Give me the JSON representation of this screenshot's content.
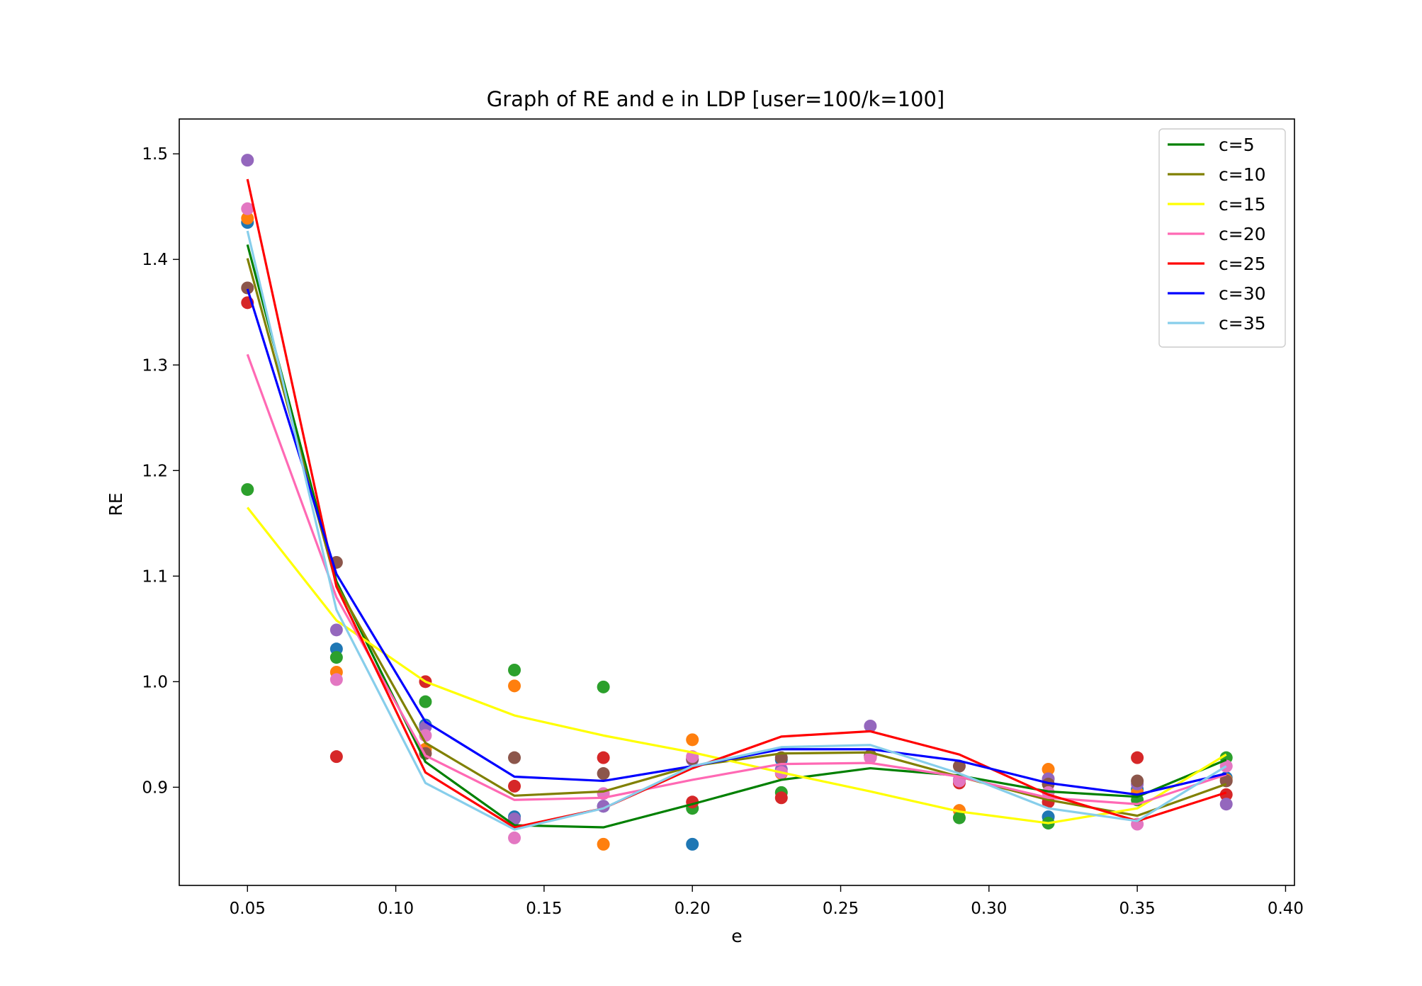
{
  "chart_data": {
    "type": "line",
    "title": "Graph of RE and e in LDP [user=100/k=100]",
    "xlabel": "e",
    "ylabel": "RE",
    "xlim": [
      0.027,
      0.403
    ],
    "ylim": [
      0.807,
      1.533
    ],
    "xticks": [
      0.05,
      0.1,
      0.15,
      0.2,
      0.25,
      0.3,
      0.35,
      0.4
    ],
    "xtick_labels": [
      "0.05",
      "0.10",
      "0.15",
      "0.20",
      "0.25",
      "0.30",
      "0.35",
      "0.40"
    ],
    "yticks": [
      0.9,
      1.0,
      1.1,
      1.2,
      1.3,
      1.4,
      1.5
    ],
    "ytick_labels": [
      "0.9",
      "1.0",
      "1.1",
      "1.2",
      "1.3",
      "1.4",
      "1.5"
    ],
    "grid": false,
    "legend_position": "top-right",
    "x": [
      0.05,
      0.08,
      0.11,
      0.14,
      0.17,
      0.2,
      0.23,
      0.26,
      0.29,
      0.32,
      0.35,
      0.38
    ],
    "series": [
      {
        "name": "c=5",
        "color": "#008000",
        "values": [
          1.414,
          1.095,
          0.924,
          0.864,
          0.862,
          0.884,
          0.907,
          0.918,
          0.911,
          0.896,
          0.891,
          0.926
        ]
      },
      {
        "name": "c=10",
        "color": "#808000",
        "values": [
          1.401,
          1.092,
          0.942,
          0.892,
          0.896,
          0.92,
          0.932,
          0.933,
          0.91,
          0.888,
          0.873,
          0.903
        ]
      },
      {
        "name": "c=15",
        "color": "#ffff00",
        "values": [
          1.165,
          1.058,
          1.0,
          0.968,
          0.949,
          0.933,
          0.914,
          0.896,
          0.877,
          0.866,
          0.88,
          0.931
        ]
      },
      {
        "name": "c=20",
        "color": "#ff69b4",
        "values": [
          1.31,
          1.08,
          0.93,
          0.888,
          0.89,
          0.907,
          0.922,
          0.923,
          0.91,
          0.89,
          0.884,
          0.912
        ]
      },
      {
        "name": "c=25",
        "color": "#ff0000",
        "values": [
          1.476,
          1.09,
          0.914,
          0.862,
          0.88,
          0.918,
          0.948,
          0.953,
          0.931,
          0.893,
          0.868,
          0.895
        ]
      },
      {
        "name": "c=30",
        "color": "#0000ff",
        "values": [
          1.372,
          1.102,
          0.962,
          0.91,
          0.906,
          0.92,
          0.936,
          0.936,
          0.925,
          0.904,
          0.893,
          0.913
        ]
      },
      {
        "name": "c=35",
        "color": "#87ceeb",
        "values": [
          1.427,
          1.068,
          0.904,
          0.86,
          0.88,
          0.92,
          0.938,
          0.94,
          0.913,
          0.88,
          0.868,
          0.92
        ]
      }
    ],
    "scatter_points": [
      {
        "color": "#1f77b4",
        "points": [
          [
            0.05,
            1.435
          ],
          [
            0.08,
            1.031
          ],
          [
            0.11,
            0.959
          ],
          [
            0.14,
            0.872
          ],
          [
            0.17,
            0.882
          ],
          [
            0.2,
            0.846
          ],
          [
            0.23,
            0.926
          ],
          [
            0.26,
            0.929
          ],
          [
            0.29,
            0.905
          ],
          [
            0.32,
            0.872
          ],
          [
            0.35,
            0.898
          ],
          [
            0.38,
            0.909
          ]
        ]
      },
      {
        "color": "#ff7f0e",
        "points": [
          [
            0.05,
            1.439
          ],
          [
            0.08,
            1.009
          ],
          [
            0.11,
            0.936
          ],
          [
            0.14,
            0.996
          ],
          [
            0.17,
            0.846
          ],
          [
            0.2,
            0.945
          ],
          [
            0.23,
            0.913
          ],
          [
            0.26,
            0.929
          ],
          [
            0.29,
            0.878
          ],
          [
            0.32,
            0.917
          ],
          [
            0.35,
            0.895
          ],
          [
            0.38,
            0.907
          ]
        ]
      },
      {
        "color": "#2ca02c",
        "points": [
          [
            0.05,
            1.182
          ],
          [
            0.08,
            1.023
          ],
          [
            0.11,
            0.981
          ],
          [
            0.14,
            1.011
          ],
          [
            0.17,
            0.995
          ],
          [
            0.2,
            0.88
          ],
          [
            0.23,
            0.895
          ],
          [
            0.26,
            0.93
          ],
          [
            0.29,
            0.871
          ],
          [
            0.32,
            0.866
          ],
          [
            0.35,
            0.888
          ],
          [
            0.38,
            0.928
          ]
        ]
      },
      {
        "color": "#d62728",
        "points": [
          [
            0.05,
            1.359
          ],
          [
            0.08,
            0.929
          ],
          [
            0.11,
            1.0
          ],
          [
            0.14,
            0.901
          ],
          [
            0.17,
            0.928
          ],
          [
            0.2,
            0.886
          ],
          [
            0.23,
            0.89
          ],
          [
            0.26,
            0.928
          ],
          [
            0.29,
            0.904
          ],
          [
            0.32,
            0.886
          ],
          [
            0.35,
            0.928
          ],
          [
            0.38,
            0.893
          ]
        ]
      },
      {
        "color": "#9467bd",
        "points": [
          [
            0.05,
            1.494
          ],
          [
            0.08,
            1.049
          ],
          [
            0.11,
            0.957
          ],
          [
            0.14,
            0.87
          ],
          [
            0.17,
            0.882
          ],
          [
            0.2,
            0.926
          ],
          [
            0.23,
            0.917
          ],
          [
            0.26,
            0.958
          ],
          [
            0.29,
            0.907
          ],
          [
            0.32,
            0.908
          ],
          [
            0.35,
            0.903
          ],
          [
            0.38,
            0.884
          ]
        ]
      },
      {
        "color": "#8c564b",
        "points": [
          [
            0.05,
            1.373
          ],
          [
            0.08,
            1.113
          ],
          [
            0.11,
            0.932
          ],
          [
            0.14,
            0.928
          ],
          [
            0.17,
            0.913
          ],
          [
            0.2,
            0.927
          ],
          [
            0.23,
            0.928
          ],
          [
            0.26,
            0.93
          ],
          [
            0.29,
            0.92
          ],
          [
            0.32,
            0.903
          ],
          [
            0.35,
            0.906
          ],
          [
            0.38,
            0.906
          ]
        ]
      },
      {
        "color": "#e377c2",
        "points": [
          [
            0.05,
            1.448
          ],
          [
            0.08,
            1.002
          ],
          [
            0.11,
            0.949
          ],
          [
            0.14,
            0.852
          ],
          [
            0.17,
            0.894
          ],
          [
            0.2,
            0.929
          ],
          [
            0.23,
            0.914
          ],
          [
            0.26,
            0.928
          ],
          [
            0.29,
            0.906
          ],
          [
            0.32,
            0.895
          ],
          [
            0.35,
            0.865
          ],
          [
            0.38,
            0.92
          ]
        ]
      }
    ]
  }
}
